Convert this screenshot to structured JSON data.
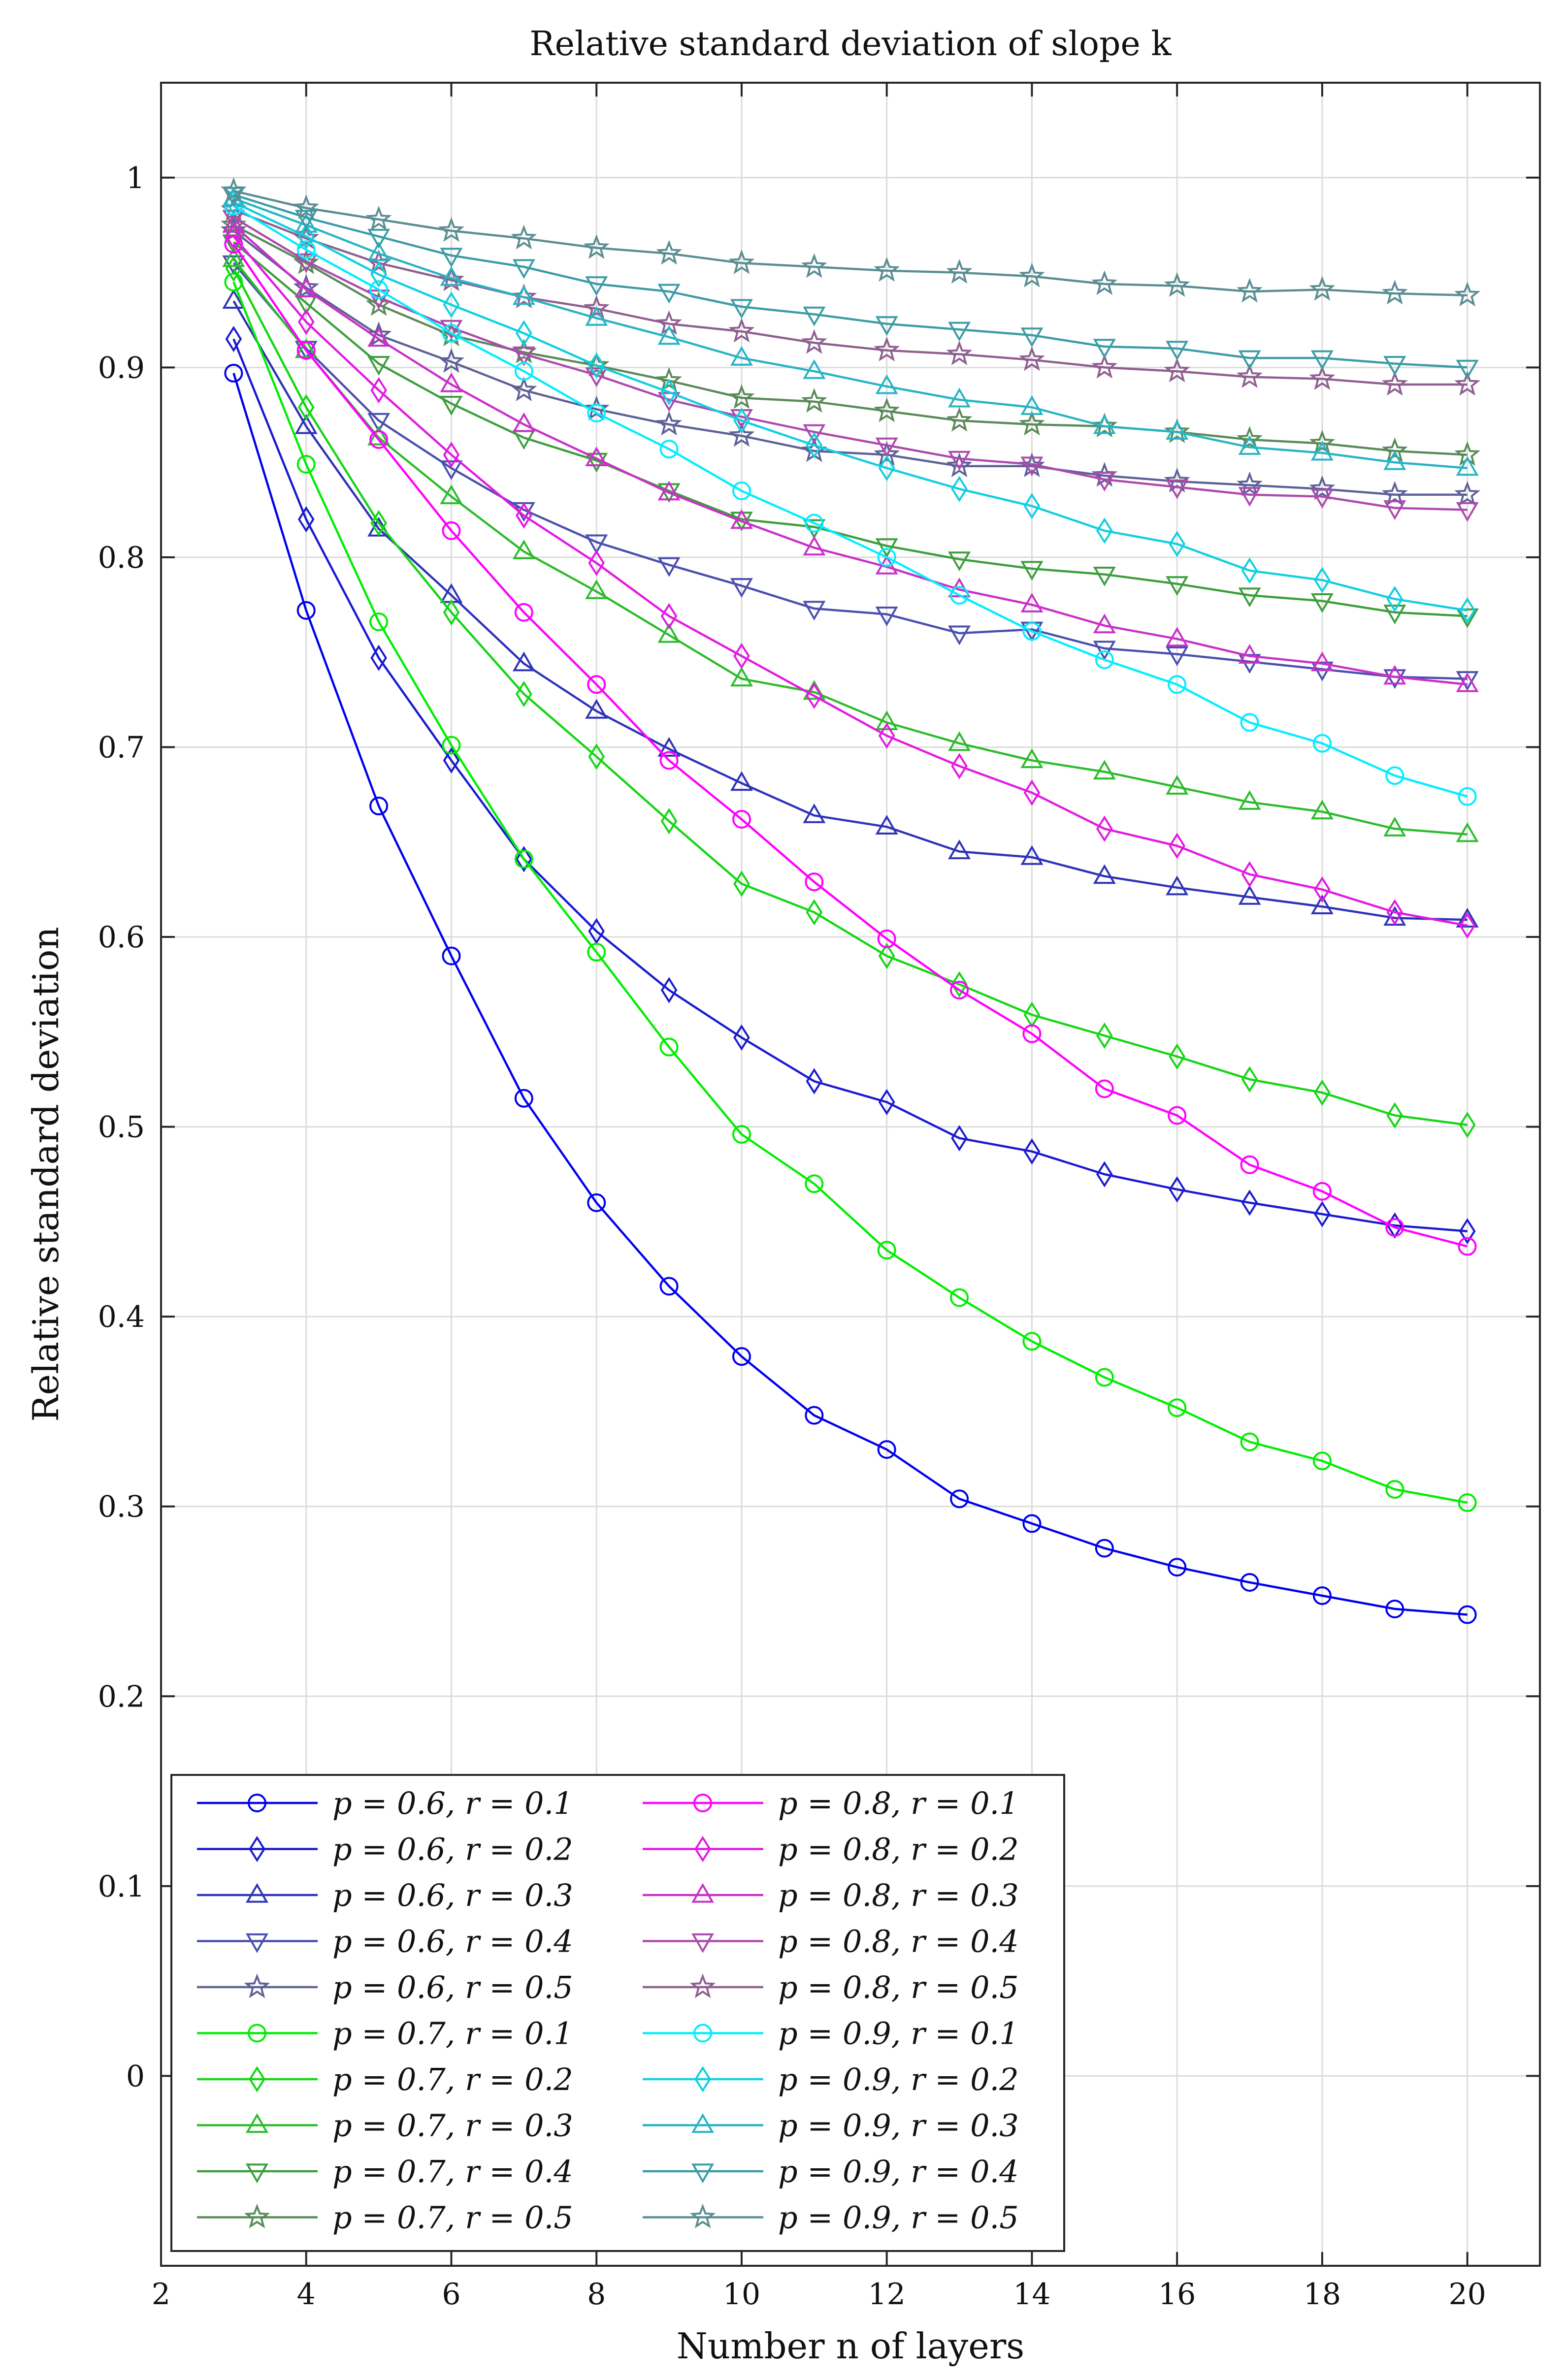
{
  "chart_data": {
    "type": "line",
    "title": "Relative standard deviation of slope k",
    "xlabel": "Number n of layers",
    "ylabel": "Relative standard deviation",
    "xlim": [
      2,
      21
    ],
    "ylim": [
      -0.1,
      1.05
    ],
    "xticks": [
      2,
      4,
      6,
      8,
      10,
      12,
      14,
      16,
      18,
      20
    ],
    "yticks": [
      0,
      0.1,
      0.2,
      0.3,
      0.4,
      0.5,
      0.6,
      0.7,
      0.8,
      0.9,
      1
    ],
    "x_tick_labels": [
      "2",
      "4",
      "6",
      "8",
      "10",
      "12",
      "14",
      "16",
      "18",
      "20"
    ],
    "y_tick_labels": [
      "0",
      "0.1",
      "0.2",
      "0.3",
      "0.4",
      "0.5",
      "0.6",
      "0.7",
      "0.8",
      "0.9",
      "1"
    ],
    "grid": true,
    "legend_position": "bottom-left",
    "x": [
      3,
      4,
      5,
      6,
      7,
      8,
      9,
      10,
      11,
      12,
      13,
      14,
      15,
      16,
      17,
      18,
      19,
      20
    ],
    "series": [
      {
        "name": "p = 0.6, r = 0.1",
        "color": "#0000ee",
        "marker": "circle",
        "values": [
          0.897,
          0.772,
          0.669,
          0.59,
          0.515,
          0.46,
          0.416,
          0.379,
          0.348,
          0.33,
          0.304,
          0.291,
          0.278,
          0.268,
          0.26,
          0.253,
          0.246,
          0.243
        ]
      },
      {
        "name": "p = 0.6, r = 0.2",
        "color": "#1a1ad2",
        "marker": "diamond",
        "values": [
          0.915,
          0.82,
          0.747,
          0.693,
          0.641,
          0.603,
          0.572,
          0.547,
          0.524,
          0.513,
          0.494,
          0.487,
          0.475,
          0.467,
          0.46,
          0.454,
          0.448,
          0.445
        ]
      },
      {
        "name": "p = 0.6, r = 0.3",
        "color": "#2e33b8",
        "marker": "triangle-up",
        "values": [
          0.935,
          0.869,
          0.815,
          0.78,
          0.744,
          0.719,
          0.699,
          0.681,
          0.664,
          0.658,
          0.645,
          0.642,
          0.632,
          0.626,
          0.621,
          0.616,
          0.61,
          0.609
        ]
      },
      {
        "name": "p = 0.6, r = 0.4",
        "color": "#4a4fae",
        "marker": "triangle-down",
        "values": [
          0.955,
          0.91,
          0.872,
          0.847,
          0.825,
          0.808,
          0.796,
          0.785,
          0.773,
          0.77,
          0.76,
          0.762,
          0.752,
          0.749,
          0.745,
          0.741,
          0.737,
          0.736
        ]
      },
      {
        "name": "p = 0.6, r = 0.5",
        "color": "#5e6196",
        "marker": "star",
        "values": [
          0.972,
          0.942,
          0.917,
          0.903,
          0.888,
          0.878,
          0.87,
          0.864,
          0.856,
          0.854,
          0.848,
          0.848,
          0.843,
          0.84,
          0.838,
          0.836,
          0.833,
          0.833
        ]
      },
      {
        "name": "p = 0.7, r = 0.1",
        "color": "#00ee00",
        "marker": "circle",
        "values": [
          0.945,
          0.849,
          0.766,
          0.701,
          0.641,
          0.592,
          0.542,
          0.496,
          0.47,
          0.435,
          0.41,
          0.387,
          0.368,
          0.352,
          0.334,
          0.324,
          0.309,
          0.302
        ]
      },
      {
        "name": "p = 0.7, r = 0.2",
        "color": "#14d614",
        "marker": "diamond",
        "values": [
          0.952,
          0.879,
          0.818,
          0.771,
          0.728,
          0.695,
          0.661,
          0.628,
          0.613,
          0.59,
          0.575,
          0.559,
          0.548,
          0.537,
          0.525,
          0.518,
          0.506,
          0.501
        ]
      },
      {
        "name": "p = 0.7, r = 0.3",
        "color": "#2cbc2c",
        "marker": "triangle-up",
        "values": [
          0.957,
          0.909,
          0.863,
          0.832,
          0.803,
          0.782,
          0.759,
          0.736,
          0.729,
          0.713,
          0.702,
          0.693,
          0.687,
          0.679,
          0.671,
          0.666,
          0.657,
          0.654
        ]
      },
      {
        "name": "p = 0.7, r = 0.4",
        "color": "#3d9e3d",
        "marker": "triangle-down",
        "values": [
          0.966,
          0.934,
          0.902,
          0.881,
          0.863,
          0.851,
          0.835,
          0.82,
          0.816,
          0.806,
          0.799,
          0.794,
          0.791,
          0.786,
          0.78,
          0.777,
          0.771,
          0.769
        ]
      },
      {
        "name": "p = 0.7, r = 0.5",
        "color": "#5a8a5a",
        "marker": "star",
        "values": [
          0.975,
          0.955,
          0.933,
          0.917,
          0.908,
          0.901,
          0.893,
          0.884,
          0.882,
          0.877,
          0.872,
          0.87,
          0.869,
          0.866,
          0.862,
          0.86,
          0.856,
          0.854
        ]
      },
      {
        "name": "p = 0.8, r = 0.1",
        "color": "#ff00ff",
        "marker": "circle",
        "values": [
          0.965,
          0.909,
          0.862,
          0.814,
          0.771,
          0.733,
          0.693,
          0.662,
          0.629,
          0.599,
          0.572,
          0.549,
          0.52,
          0.506,
          0.48,
          0.466,
          0.447,
          0.437
        ]
      },
      {
        "name": "p = 0.8, r = 0.2",
        "color": "#e21ae2",
        "marker": "diamond",
        "values": [
          0.969,
          0.924,
          0.888,
          0.854,
          0.822,
          0.797,
          0.769,
          0.748,
          0.727,
          0.706,
          0.69,
          0.676,
          0.657,
          0.648,
          0.633,
          0.625,
          0.613,
          0.606
        ]
      },
      {
        "name": "p = 0.8, r = 0.3",
        "color": "#c831c8",
        "marker": "triangle-up",
        "values": [
          0.975,
          0.941,
          0.915,
          0.891,
          0.87,
          0.852,
          0.834,
          0.819,
          0.805,
          0.795,
          0.783,
          0.775,
          0.764,
          0.757,
          0.748,
          0.744,
          0.737,
          0.733
        ]
      },
      {
        "name": "p = 0.8, r = 0.4",
        "color": "#ad4aad",
        "marker": "triangle-down",
        "values": [
          0.979,
          0.956,
          0.937,
          0.921,
          0.907,
          0.896,
          0.883,
          0.874,
          0.866,
          0.859,
          0.852,
          0.849,
          0.841,
          0.837,
          0.833,
          0.832,
          0.826,
          0.825
        ]
      },
      {
        "name": "p = 0.8, r = 0.5",
        "color": "#8f5f8f",
        "marker": "star",
        "values": [
          0.983,
          0.968,
          0.955,
          0.946,
          0.937,
          0.931,
          0.923,
          0.919,
          0.913,
          0.909,
          0.907,
          0.904,
          0.9,
          0.898,
          0.895,
          0.894,
          0.891,
          0.891
        ]
      },
      {
        "name": "p = 0.9, r = 0.1",
        "color": "#00eeff",
        "marker": "circle",
        "values": [
          0.985,
          0.962,
          0.941,
          0.918,
          0.898,
          0.876,
          0.857,
          0.835,
          0.818,
          0.8,
          0.78,
          0.761,
          0.746,
          0.733,
          0.713,
          0.702,
          0.685,
          0.674
        ]
      },
      {
        "name": "p = 0.9, r = 0.2",
        "color": "#10cfe0",
        "marker": "diamond",
        "values": [
          0.987,
          0.969,
          0.949,
          0.933,
          0.918,
          0.901,
          0.887,
          0.872,
          0.859,
          0.847,
          0.836,
          0.827,
          0.814,
          0.807,
          0.793,
          0.788,
          0.778,
          0.772
        ]
      },
      {
        "name": "p = 0.9, r = 0.3",
        "color": "#28b4c4",
        "marker": "triangle-up",
        "values": [
          0.989,
          0.975,
          0.96,
          0.947,
          0.937,
          0.926,
          0.916,
          0.905,
          0.898,
          0.89,
          0.883,
          0.879,
          0.869,
          0.866,
          0.858,
          0.855,
          0.85,
          0.847
        ]
      },
      {
        "name": "p = 0.9, r = 0.4",
        "color": "#3c9ca6",
        "marker": "triangle-down",
        "values": [
          0.991,
          0.979,
          0.969,
          0.959,
          0.953,
          0.944,
          0.94,
          0.932,
          0.928,
          0.923,
          0.92,
          0.917,
          0.911,
          0.91,
          0.905,
          0.905,
          0.902,
          0.9
        ]
      },
      {
        "name": "p = 0.9, r = 0.5",
        "color": "#5b8d92",
        "marker": "star",
        "values": [
          0.993,
          0.984,
          0.978,
          0.972,
          0.968,
          0.963,
          0.96,
          0.955,
          0.953,
          0.951,
          0.95,
          0.948,
          0.944,
          0.943,
          0.94,
          0.941,
          0.939,
          0.938
        ]
      }
    ]
  }
}
